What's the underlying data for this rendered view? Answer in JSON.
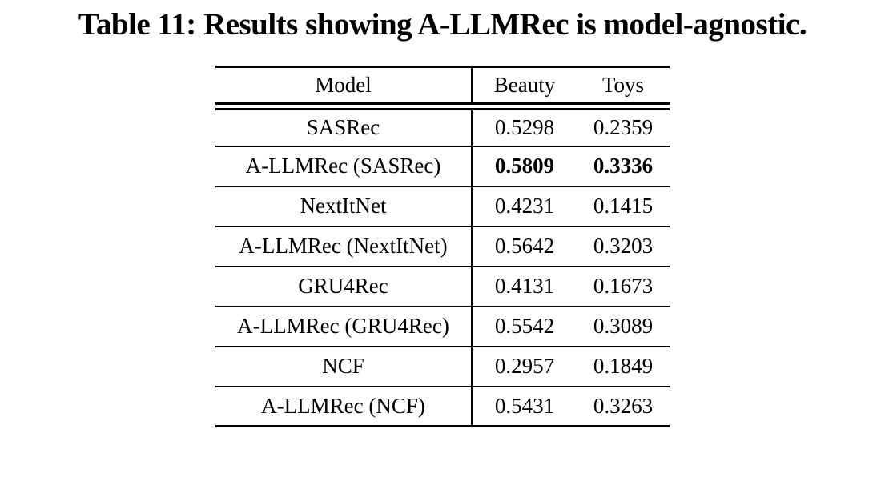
{
  "page": {
    "caption": "Table 11: Results showing A-LLMRec is model-agnostic."
  },
  "table": {
    "columns": {
      "model": "Model",
      "beauty": "Beauty",
      "toys": "Toys"
    },
    "rows": [
      {
        "model": "SASRec",
        "beauty": "0.5298",
        "toys": "0.2359",
        "bold": false
      },
      {
        "model": "A-LLMRec (SASRec)",
        "beauty": "0.5809",
        "toys": "0.3336",
        "bold": true
      },
      {
        "model": "NextItNet",
        "beauty": "0.4231",
        "toys": "0.1415",
        "bold": false
      },
      {
        "model": "A-LLMRec (NextItNet)",
        "beauty": "0.5642",
        "toys": "0.3203",
        "bold": false
      },
      {
        "model": "GRU4Rec",
        "beauty": "0.4131",
        "toys": "0.1673",
        "bold": false
      },
      {
        "model": "A-LLMRec (GRU4Rec)",
        "beauty": "0.5542",
        "toys": "0.3089",
        "bold": false
      },
      {
        "model": "NCF",
        "beauty": "0.2957",
        "toys": "0.1849",
        "bold": false
      },
      {
        "model": "A-LLMRec (NCF)",
        "beauty": "0.5431",
        "toys": "0.3263",
        "bold": false
      }
    ],
    "colors": {
      "text": "#000000",
      "rules": "#000000",
      "background": "#ffffff"
    }
  }
}
